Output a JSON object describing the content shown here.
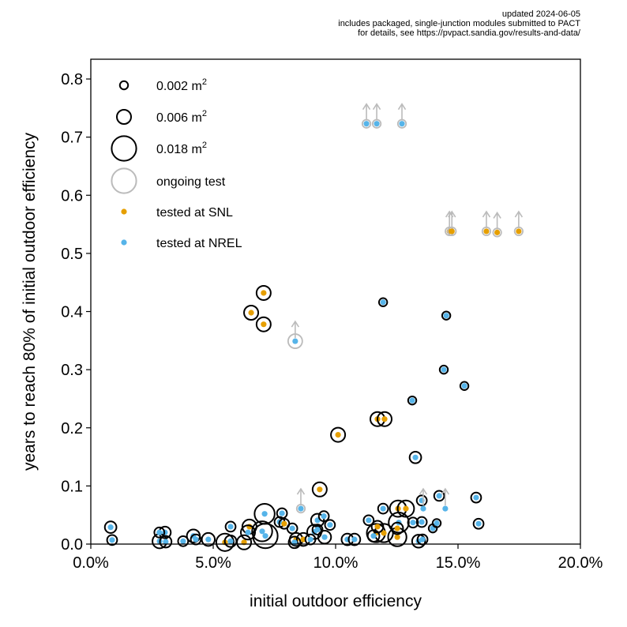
{
  "chart_data": {
    "type": "scatter",
    "notes": [
      "updated 2024-06-05",
      "includes packaged, single-junction modules submitted to PACT",
      "for details, see https://pvpact.sandia.gov/results-and-data/"
    ],
    "xlabel": "initial outdoor efficiency",
    "ylabel": "years to reach 80% of initial outdoor efficiency",
    "xlim": [
      0,
      20
    ],
    "ylim": [
      0,
      0.834
    ],
    "x_unit": "%",
    "xticks": [
      "0.0%",
      "5.0%",
      "10.0%",
      "15.0%",
      "20.0%"
    ],
    "xtick_values": [
      0,
      5,
      10,
      15,
      20
    ],
    "yticks": [
      "0.0",
      "0.1",
      "0.2",
      "0.3",
      "0.4",
      "0.5",
      "0.6",
      "0.7",
      "0.8"
    ],
    "ytick_values": [
      0,
      0.1,
      0.2,
      0.3,
      0.4,
      0.5,
      0.6,
      0.7,
      0.8
    ],
    "grid": false,
    "legend_position": "top-left",
    "legend": {
      "sizes": [
        {
          "label": "0.002 m",
          "sup": "2",
          "area": 0.002
        },
        {
          "label": "0.006 m",
          "sup": "2",
          "area": 0.006
        },
        {
          "label": "0.018 m",
          "sup": "2",
          "area": 0.018
        }
      ],
      "ongoing": "ongoing test",
      "labs": [
        {
          "label": "tested at SNL",
          "key": "SNL"
        },
        {
          "label": "tested at NREL",
          "key": "NREL"
        }
      ]
    },
    "colors": {
      "SNL": "#E69F00",
      "NREL": "#56B4E9",
      "ongoing": "#BBBBBB",
      "edge": "#000000"
    },
    "points": [
      {
        "x": 11.26,
        "y": 0.723,
        "area": 0.002,
        "lab": "NREL",
        "ongoing": true
      },
      {
        "x": 11.68,
        "y": 0.723,
        "area": 0.002,
        "lab": "NREL",
        "ongoing": true
      },
      {
        "x": 12.71,
        "y": 0.723,
        "area": 0.002,
        "lab": "NREL",
        "ongoing": true
      },
      {
        "x": 14.65,
        "y": 0.538,
        "area": 0.002,
        "lab": "SNL",
        "ongoing": true
      },
      {
        "x": 14.75,
        "y": 0.538,
        "area": 0.002,
        "lab": "SNL",
        "ongoing": true
      },
      {
        "x": 16.16,
        "y": 0.538,
        "area": 0.002,
        "lab": "SNL",
        "ongoing": true
      },
      {
        "x": 16.6,
        "y": 0.536,
        "area": 0.002,
        "lab": "SNL",
        "ongoing": true
      },
      {
        "x": 17.48,
        "y": 0.538,
        "area": 0.002,
        "lab": "SNL",
        "ongoing": true
      },
      {
        "x": 8.35,
        "y": 0.349,
        "area": 0.006,
        "lab": "NREL",
        "ongoing": true
      },
      {
        "x": 8.58,
        "y": 0.061,
        "area": 0.002,
        "lab": "NREL",
        "ongoing": true
      },
      {
        "x": 13.58,
        "y": 0.061,
        "area": 0.0,
        "lab": "NREL",
        "ongoing": true
      },
      {
        "x": 14.48,
        "y": 0.061,
        "area": 0.0,
        "lab": "NREL",
        "ongoing": true
      },
      {
        "x": 7.06,
        "y": 0.432,
        "area": 0.006,
        "lab": "SNL",
        "ongoing": false
      },
      {
        "x": 6.55,
        "y": 0.398,
        "area": 0.006,
        "lab": "SNL",
        "ongoing": false
      },
      {
        "x": 7.06,
        "y": 0.378,
        "area": 0.006,
        "lab": "SNL",
        "ongoing": false
      },
      {
        "x": 11.94,
        "y": 0.416,
        "area": 0.002,
        "lab": "NREL",
        "ongoing": false
      },
      {
        "x": 14.52,
        "y": 0.393,
        "area": 0.002,
        "lab": "NREL",
        "ongoing": false
      },
      {
        "x": 14.42,
        "y": 0.3,
        "area": 0.002,
        "lab": "NREL",
        "ongoing": false
      },
      {
        "x": 15.26,
        "y": 0.272,
        "area": 0.002,
        "lab": "NREL",
        "ongoing": false
      },
      {
        "x": 13.13,
        "y": 0.247,
        "area": 0.002,
        "lab": "NREL",
        "ongoing": false
      },
      {
        "x": 11.71,
        "y": 0.215,
        "area": 0.006,
        "lab": "SNL",
        "ongoing": false
      },
      {
        "x": 12.0,
        "y": 0.215,
        "area": 0.006,
        "lab": "SNL",
        "ongoing": false
      },
      {
        "x": 10.1,
        "y": 0.188,
        "area": 0.006,
        "lab": "SNL",
        "ongoing": false
      },
      {
        "x": 13.26,
        "y": 0.149,
        "area": 0.004,
        "lab": "NREL",
        "ongoing": false
      },
      {
        "x": 9.35,
        "y": 0.094,
        "area": 0.006,
        "lab": "SNL",
        "ongoing": false
      },
      {
        "x": 14.23,
        "y": 0.083,
        "area": 0.003,
        "lab": "NREL",
        "ongoing": false
      },
      {
        "x": 15.74,
        "y": 0.08,
        "area": 0.003,
        "lab": "NREL",
        "ongoing": false
      },
      {
        "x": 15.84,
        "y": 0.035,
        "area": 0.003,
        "lab": "NREL",
        "ongoing": false
      },
      {
        "x": 0.81,
        "y": 0.029,
        "area": 0.004,
        "lab": "NREL",
        "ongoing": false
      },
      {
        "x": 0.87,
        "y": 0.007,
        "area": 0.003,
        "lab": "NREL",
        "ongoing": false
      },
      {
        "x": 2.8,
        "y": 0.02,
        "area": 0.003,
        "lab": "NREL",
        "ongoing": false
      },
      {
        "x": 3.03,
        "y": 0.02,
        "area": 0.004,
        "lab": "NREL",
        "ongoing": false
      },
      {
        "x": 2.81,
        "y": 0.005,
        "area": 0.006,
        "lab": "NREL",
        "ongoing": false
      },
      {
        "x": 3.06,
        "y": 0.004,
        "area": 0.004,
        "lab": "NREL",
        "ongoing": false
      },
      {
        "x": 3.77,
        "y": 0.005,
        "area": 0.003,
        "lab": "NREL",
        "ongoing": false
      },
      {
        "x": 4.19,
        "y": 0.014,
        "area": 0.005,
        "lab": "NREL",
        "ongoing": false
      },
      {
        "x": 4.29,
        "y": 0.008,
        "area": 0.003,
        "lab": "NREL",
        "ongoing": false
      },
      {
        "x": 4.8,
        "y": 0.008,
        "area": 0.005,
        "lab": "NREL",
        "ongoing": false
      },
      {
        "x": 5.48,
        "y": 0.003,
        "area": 0.009,
        "lab": "SNL",
        "ongoing": false
      },
      {
        "x": 5.71,
        "y": 0.005,
        "area": 0.004,
        "lab": "NREL",
        "ongoing": false
      },
      {
        "x": 5.71,
        "y": 0.03,
        "area": 0.003,
        "lab": "NREL",
        "ongoing": false
      },
      {
        "x": 6.26,
        "y": 0.003,
        "area": 0.006,
        "lab": "SNL",
        "ongoing": false
      },
      {
        "x": 6.48,
        "y": 0.03,
        "area": 0.006,
        "lab": "SNL",
        "ongoing": false
      },
      {
        "x": 6.42,
        "y": 0.02,
        "area": 0.006,
        "lab": "NREL",
        "ongoing": false
      },
      {
        "x": 7.0,
        "y": 0.022,
        "area": 0.012,
        "lab": "NREL",
        "ongoing": false
      },
      {
        "x": 7.13,
        "y": 0.014,
        "area": 0.018,
        "lab": "NREL",
        "ongoing": false
      },
      {
        "x": 7.1,
        "y": 0.052,
        "area": 0.012,
        "lab": "NREL",
        "ongoing": false
      },
      {
        "x": 7.81,
        "y": 0.053,
        "area": 0.003,
        "lab": "NREL",
        "ongoing": false
      },
      {
        "x": 7.71,
        "y": 0.038,
        "area": 0.003,
        "lab": "NREL",
        "ongoing": false
      },
      {
        "x": 7.9,
        "y": 0.035,
        "area": 0.003,
        "lab": "SNL",
        "ongoing": false
      },
      {
        "x": 8.23,
        "y": 0.027,
        "area": 0.003,
        "lab": "NREL",
        "ongoing": false
      },
      {
        "x": 8.39,
        "y": 0.008,
        "area": 0.005,
        "lab": "SNL",
        "ongoing": false
      },
      {
        "x": 8.68,
        "y": 0.008,
        "area": 0.005,
        "lab": "SNL",
        "ongoing": false
      },
      {
        "x": 8.32,
        "y": 0.003,
        "area": 0.004,
        "lab": "NREL",
        "ongoing": false
      },
      {
        "x": 8.97,
        "y": 0.008,
        "area": 0.003,
        "lab": "NREL",
        "ongoing": false
      },
      {
        "x": 9.26,
        "y": 0.041,
        "area": 0.005,
        "lab": "NREL",
        "ongoing": false
      },
      {
        "x": 9.52,
        "y": 0.048,
        "area": 0.003,
        "lab": "NREL",
        "ongoing": false
      },
      {
        "x": 9.77,
        "y": 0.033,
        "area": 0.003,
        "lab": "NREL",
        "ongoing": false
      },
      {
        "x": 9.13,
        "y": 0.021,
        "area": 0.006,
        "lab": "NREL",
        "ongoing": false
      },
      {
        "x": 9.26,
        "y": 0.025,
        "area": 0.003,
        "lab": "NREL",
        "ongoing": false
      },
      {
        "x": 9.55,
        "y": 0.012,
        "area": 0.005,
        "lab": "NREL",
        "ongoing": false
      },
      {
        "x": 10.48,
        "y": 0.008,
        "area": 0.004,
        "lab": "NREL",
        "ongoing": false
      },
      {
        "x": 10.77,
        "y": 0.008,
        "area": 0.004,
        "lab": "NREL",
        "ongoing": false
      },
      {
        "x": 11.35,
        "y": 0.041,
        "area": 0.003,
        "lab": "NREL",
        "ongoing": false
      },
      {
        "x": 11.71,
        "y": 0.03,
        "area": 0.004,
        "lab": "SNL",
        "ongoing": false
      },
      {
        "x": 11.65,
        "y": 0.019,
        "area": 0.01,
        "lab": "SNL",
        "ongoing": false
      },
      {
        "x": 11.97,
        "y": 0.019,
        "area": 0.01,
        "lab": "SNL",
        "ongoing": false
      },
      {
        "x": 11.55,
        "y": 0.014,
        "area": 0.004,
        "lab": "NREL",
        "ongoing": false
      },
      {
        "x": 11.94,
        "y": 0.061,
        "area": 0.003,
        "lab": "NREL",
        "ongoing": false
      },
      {
        "x": 12.55,
        "y": 0.061,
        "area": 0.008,
        "lab": "SNL",
        "ongoing": false
      },
      {
        "x": 12.87,
        "y": 0.061,
        "area": 0.008,
        "lab": "SNL",
        "ongoing": false
      },
      {
        "x": 12.58,
        "y": 0.037,
        "area": 0.012,
        "lab": "NREL",
        "ongoing": false
      },
      {
        "x": 12.52,
        "y": 0.027,
        "area": 0.004,
        "lab": "SNL",
        "ongoing": false
      },
      {
        "x": 12.52,
        "y": 0.012,
        "area": 0.01,
        "lab": "SNL",
        "ongoing": false
      },
      {
        "x": 13.16,
        "y": 0.037,
        "area": 0.003,
        "lab": "NREL",
        "ongoing": false
      },
      {
        "x": 13.52,
        "y": 0.038,
        "area": 0.003,
        "lab": "NREL",
        "ongoing": false
      },
      {
        "x": 13.52,
        "y": 0.075,
        "area": 0.003,
        "lab": "NREL",
        "ongoing": false
      },
      {
        "x": 13.97,
        "y": 0.027,
        "area": 0.002,
        "lab": "NREL",
        "ongoing": false
      },
      {
        "x": 14.13,
        "y": 0.036,
        "area": 0.002,
        "lab": "NREL",
        "ongoing": false
      },
      {
        "x": 13.39,
        "y": 0.005,
        "area": 0.005,
        "lab": "NREL",
        "ongoing": false
      },
      {
        "x": 13.55,
        "y": 0.008,
        "area": 0.003,
        "lab": "NREL",
        "ongoing": false
      }
    ]
  }
}
